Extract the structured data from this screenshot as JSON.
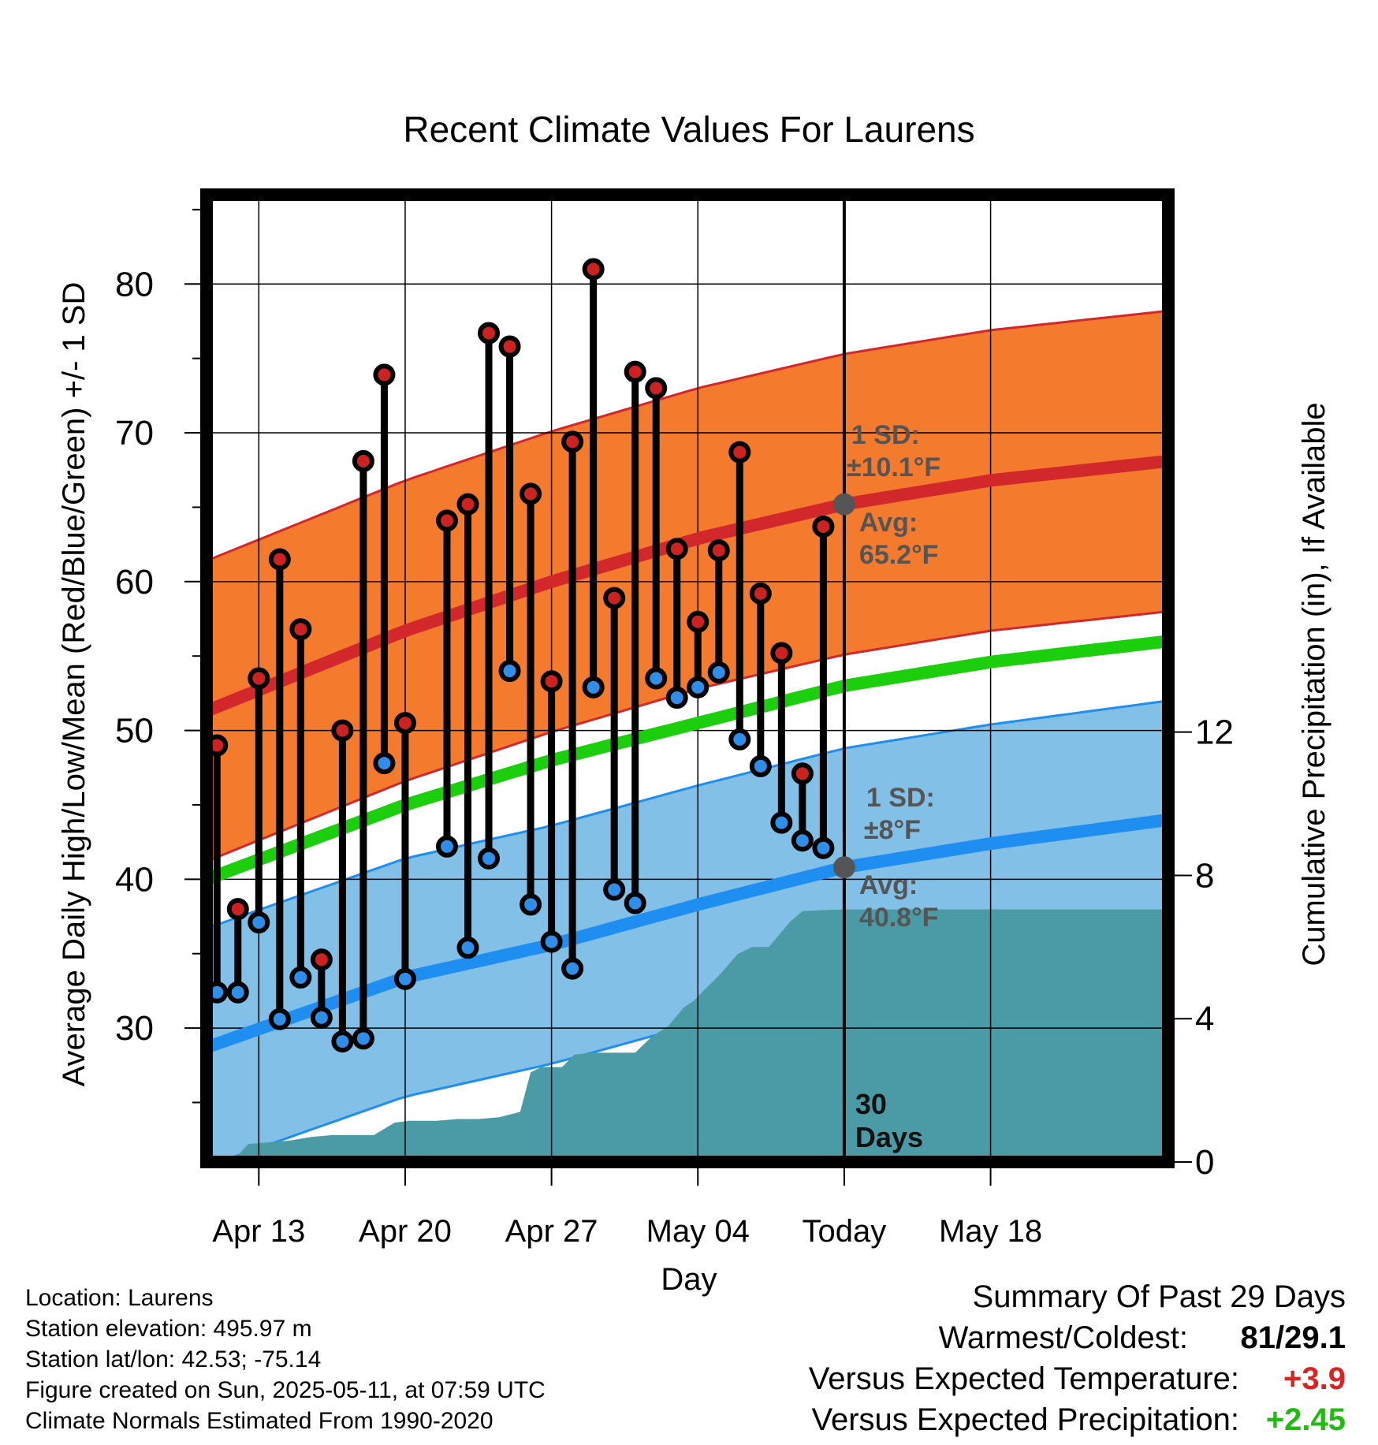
{
  "chart_data": {
    "type": "line",
    "title": "Recent Climate Values For Laurens",
    "xlabel": "Day",
    "ylabel": "Average Daily High/Low/Mean (Red/Blue/Green) +/- 1 SD",
    "y2label": "Cumulative Precipitation (in), If Available",
    "xlim": [
      -2.5,
      43.5
    ],
    "ylim": [
      21,
      86
    ],
    "y2lim": [
      0,
      27
    ],
    "x_ticks": [
      {
        "x": 0,
        "label": "Apr 13"
      },
      {
        "x": 7,
        "label": "Apr 20"
      },
      {
        "x": 14,
        "label": "Apr 27"
      },
      {
        "x": 21,
        "label": "May 04"
      },
      {
        "x": 28,
        "label": "Today"
      },
      {
        "x": 35,
        "label": "May 18"
      }
    ],
    "y_ticks": [
      30,
      40,
      50,
      60,
      70,
      80
    ],
    "y2_ticks": [
      0,
      4,
      8,
      12
    ],
    "today_x": 28,
    "normal_high": {
      "x": [
        -2.5,
        7,
        14,
        21,
        28,
        35,
        43.5
      ],
      "mean": [
        51.3,
        56.7,
        60.0,
        62.9,
        65.2,
        66.8,
        68.1
      ],
      "sd": 10.1
    },
    "normal_low": {
      "x": [
        -2.5,
        7,
        14,
        21,
        28,
        35,
        43.5
      ],
      "mean": [
        28.7,
        33.4,
        35.6,
        38.3,
        40.8,
        42.4,
        44.0
      ],
      "sd": 8
    },
    "normal_mean": {
      "x": [
        -2.5,
        7,
        14,
        21,
        28,
        35,
        43.5
      ],
      "values": [
        40.0,
        45.0,
        48.0,
        50.5,
        53.0,
        54.6,
        56.0
      ]
    },
    "series": [
      {
        "name": "Daily High",
        "color": "#cc2222",
        "x": [
          -2,
          -1,
          0,
          1,
          2,
          3,
          4,
          5,
          6,
          7,
          9,
          10,
          11,
          12,
          13,
          14,
          15,
          16,
          17,
          18,
          19,
          20,
          21,
          22,
          23,
          24,
          25,
          26,
          27
        ],
        "values": [
          49.0,
          38.0,
          53.5,
          61.5,
          56.8,
          34.6,
          50.0,
          68.1,
          73.9,
          50.5,
          64.1,
          65.2,
          76.7,
          75.8,
          65.9,
          53.3,
          69.4,
          81.0,
          58.9,
          74.1,
          73.0,
          62.2,
          57.3,
          62.1,
          68.7,
          59.2,
          55.2,
          47.1,
          63.7
        ]
      },
      {
        "name": "Daily Low",
        "color": "#2e8ee8",
        "x": [
          -2,
          -1,
          0,
          1,
          2,
          3,
          4,
          5,
          6,
          7,
          9,
          10,
          11,
          12,
          13,
          14,
          15,
          16,
          17,
          18,
          19,
          20,
          21,
          22,
          23,
          24,
          25,
          26,
          27
        ],
        "values": [
          32.4,
          32.4,
          37.1,
          30.6,
          33.4,
          30.7,
          29.1,
          29.3,
          47.8,
          33.3,
          42.2,
          35.4,
          41.4,
          54.0,
          38.3,
          35.8,
          34.0,
          52.9,
          39.3,
          38.4,
          53.5,
          52.2,
          52.9,
          53.9,
          49.4,
          47.6,
          43.8,
          42.6,
          42.1
        ]
      }
    ],
    "precip_cumulative": {
      "x": [
        -2.5,
        -1.3,
        -0.5,
        0.5,
        1.5,
        2.5,
        3.5,
        4.5,
        5.5,
        6.5,
        7.2,
        8.5,
        9.5,
        10.5,
        11.5,
        12.5,
        13.0,
        13.5,
        14.5,
        15.1,
        16.0,
        17.0,
        18.0,
        18.8,
        19.6,
        20.3,
        20.8,
        21.3,
        22.0,
        22.9,
        23.6,
        24.4,
        25.4,
        26.0,
        26.6,
        27.3,
        28.0,
        35,
        43.5
      ],
      "values": [
        0,
        0,
        0.5,
        0.55,
        0.6,
        0.7,
        0.75,
        0.75,
        0.75,
        1.1,
        1.15,
        1.15,
        1.2,
        1.2,
        1.25,
        1.4,
        2.5,
        2.65,
        2.65,
        3.0,
        3.05,
        3.05,
        3.05,
        3.5,
        3.8,
        4.3,
        4.5,
        4.8,
        5.2,
        5.8,
        6.0,
        6.0,
        6.7,
        7.0,
        7.02,
        7.04,
        7.05,
        7.05,
        7.05
      ]
    },
    "annotations": {
      "high_sd": {
        "line1": "1 SD:",
        "line2": "±10.1°F",
        "avg1": "Avg:",
        "avg2": "65.2°F"
      },
      "low_sd": {
        "line1": "1 SD:",
        "line2": "±8°F",
        "avg1": "Avg:",
        "avg2": "40.8°F"
      },
      "days": {
        "line1": "30",
        "line2": "Days"
      }
    },
    "colors": {
      "high_band": "#f47a2e",
      "high_line": "#d3282b",
      "low_band": "#82c0e7",
      "low_line": "#1e8ef0",
      "mean_line": "#1ccf0c",
      "precip": "#4a9ba6",
      "avg_dot": "#555555",
      "annotation_text": "#555555",
      "frame": "#000000"
    }
  },
  "info": {
    "location": "Location: Laurens",
    "elevation": "Station elevation: 495.97 m",
    "latlon": "Station lat/lon: 42.53; -75.14",
    "created": "Figure created on Sun, 2025-05-11, at 07:59 UTC",
    "normals": "Climate Normals Estimated From 1990-2020"
  },
  "summary": {
    "heading": "Summary Of Past 29 Days",
    "warm_cold_label": "Warmest/Coldest:",
    "warm_cold_value": "81/29.1",
    "temp_label": "Versus Expected Temperature:",
    "temp_value": "+3.9",
    "temp_color": "#dd2222",
    "precip_label": "Versus Expected Precipitation:",
    "precip_value": "+2.45",
    "precip_color": "#22bb11"
  }
}
